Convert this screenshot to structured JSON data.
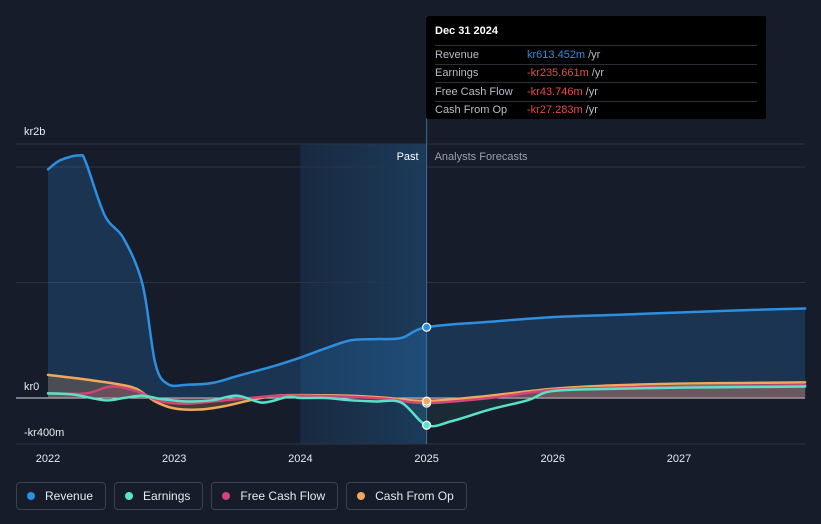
{
  "chart_data": {
    "type": "area",
    "currency_prefix": "kr",
    "y_ticks": [
      {
        "value": 2000,
        "label": "kr2b"
      },
      {
        "value": 0,
        "label": "kr0"
      },
      {
        "value": -400,
        "label": "-kr400m"
      }
    ],
    "x_ticks": [
      {
        "value": 2022,
        "label": "2022"
      },
      {
        "value": 2023,
        "label": "2023"
      },
      {
        "value": 2024,
        "label": "2024"
      },
      {
        "value": 2025,
        "label": "2025"
      },
      {
        "value": 2026,
        "label": "2026"
      },
      {
        "value": 2027,
        "label": "2027"
      }
    ],
    "xlim": [
      2021.75,
      2028.0
    ],
    "ylim": [
      -400,
      2200
    ],
    "past_label": "Past",
    "forecast_label": "Analysts Forecasts",
    "divider_x": 2025.0,
    "shade_start_x": 2024.0,
    "series": [
      {
        "name": "Revenue",
        "color": "#2d8fe0",
        "points": [
          [
            2022.0,
            1980
          ],
          [
            2022.1,
            2060
          ],
          [
            2022.25,
            2100
          ],
          [
            2022.3,
            2040
          ],
          [
            2022.45,
            1580
          ],
          [
            2022.6,
            1380
          ],
          [
            2022.75,
            980
          ],
          [
            2022.85,
            300
          ],
          [
            2022.95,
            120
          ],
          [
            2023.1,
            115
          ],
          [
            2023.3,
            130
          ],
          [
            2023.5,
            190
          ],
          [
            2023.8,
            280
          ],
          [
            2024.0,
            350
          ],
          [
            2024.2,
            430
          ],
          [
            2024.4,
            500
          ],
          [
            2024.6,
            510
          ],
          [
            2024.8,
            520
          ],
          [
            2025.0,
            613
          ],
          [
            2025.5,
            660
          ],
          [
            2026.0,
            700
          ],
          [
            2026.5,
            720
          ],
          [
            2027.0,
            740
          ],
          [
            2027.5,
            760
          ],
          [
            2028.0,
            775
          ]
        ]
      },
      {
        "name": "Earnings",
        "color": "#59e2c8",
        "points": [
          [
            2022.0,
            40
          ],
          [
            2022.2,
            30
          ],
          [
            2022.45,
            -20
          ],
          [
            2022.6,
            0
          ],
          [
            2022.75,
            20
          ],
          [
            2022.9,
            -10
          ],
          [
            2023.1,
            -30
          ],
          [
            2023.3,
            -20
          ],
          [
            2023.5,
            20
          ],
          [
            2023.7,
            -40
          ],
          [
            2023.9,
            10
          ],
          [
            2024.0,
            0
          ],
          [
            2024.2,
            0
          ],
          [
            2024.4,
            -20
          ],
          [
            2024.6,
            -30
          ],
          [
            2024.8,
            -40
          ],
          [
            2025.0,
            -236
          ],
          [
            2025.2,
            -200
          ],
          [
            2025.5,
            -100
          ],
          [
            2025.8,
            -20
          ],
          [
            2026.0,
            60
          ],
          [
            2026.5,
            80
          ],
          [
            2027.0,
            90
          ],
          [
            2027.5,
            95
          ],
          [
            2028.0,
            100
          ]
        ]
      },
      {
        "name": "Free Cash Flow",
        "color": "#d2447a",
        "points": [
          [
            2022.0,
            40
          ],
          [
            2022.3,
            40
          ],
          [
            2022.5,
            100
          ],
          [
            2022.7,
            60
          ],
          [
            2022.9,
            -30
          ],
          [
            2023.1,
            -50
          ],
          [
            2023.3,
            -30
          ],
          [
            2023.6,
            0
          ],
          [
            2023.8,
            20
          ],
          [
            2024.0,
            20
          ],
          [
            2024.4,
            10
          ],
          [
            2024.7,
            -10
          ],
          [
            2025.0,
            -44
          ],
          [
            2025.5,
            0
          ],
          [
            2026.0,
            70
          ],
          [
            2026.5,
            90
          ],
          [
            2027.0,
            100
          ],
          [
            2027.5,
            105
          ],
          [
            2028.0,
            110
          ]
        ]
      },
      {
        "name": "Cash From Op",
        "color": "#f0a95b",
        "points": [
          [
            2022.0,
            200
          ],
          [
            2022.3,
            160
          ],
          [
            2022.55,
            120
          ],
          [
            2022.7,
            80
          ],
          [
            2022.85,
            -30
          ],
          [
            2023.0,
            -90
          ],
          [
            2023.2,
            -100
          ],
          [
            2023.4,
            -70
          ],
          [
            2023.6,
            -20
          ],
          [
            2023.8,
            20
          ],
          [
            2024.0,
            25
          ],
          [
            2024.4,
            20
          ],
          [
            2024.7,
            0
          ],
          [
            2025.0,
            -27
          ],
          [
            2025.5,
            20
          ],
          [
            2026.0,
            80
          ],
          [
            2026.5,
            110
          ],
          [
            2027.0,
            125
          ],
          [
            2027.5,
            130
          ],
          [
            2028.0,
            135
          ]
        ]
      }
    ]
  },
  "tooltip": {
    "date": "Dec 31 2024",
    "rows": [
      {
        "label": "Revenue",
        "value": "kr613.452m",
        "unit": "/yr",
        "color": "#2d8fe0"
      },
      {
        "label": "Earnings",
        "value": "-kr235.661m",
        "unit": "/yr",
        "color": "#e84b4b"
      },
      {
        "label": "Free Cash Flow",
        "value": "-kr43.746m",
        "unit": "/yr",
        "color": "#e84b4b"
      },
      {
        "label": "Cash From Op",
        "value": "-kr27.283m",
        "unit": "/yr",
        "color": "#e84b4b"
      }
    ]
  },
  "legend": [
    {
      "label": "Revenue",
      "color": "#2d8fe0"
    },
    {
      "label": "Earnings",
      "color": "#59e2c8"
    },
    {
      "label": "Free Cash Flow",
      "color": "#d2447a"
    },
    {
      "label": "Cash From Op",
      "color": "#f0a95b"
    }
  ]
}
